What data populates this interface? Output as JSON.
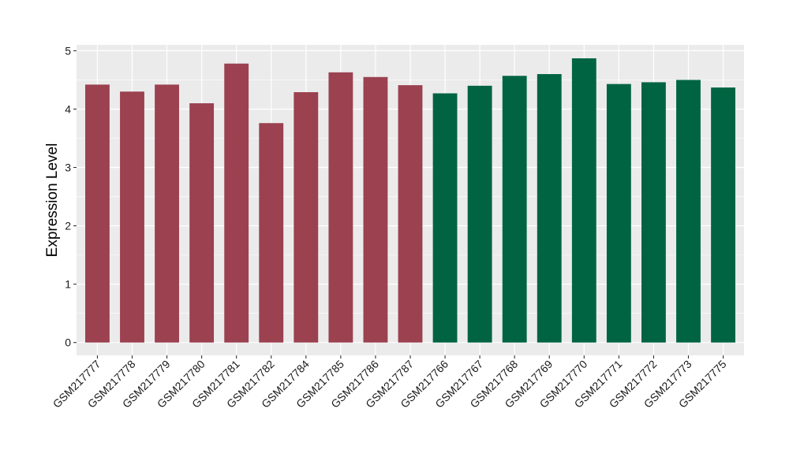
{
  "chart_data": {
    "type": "bar",
    "ylabel": "Expression Level",
    "xlabel": "",
    "title": "",
    "ylim": [
      -0.22,
      5.1
    ],
    "yticks": [
      0,
      1,
      2,
      3,
      4,
      5
    ],
    "grid": true,
    "legend": "none",
    "categories": [
      "GSM217777",
      "GSM217778",
      "GSM217779",
      "GSM217780",
      "GSM217781",
      "GSM217782",
      "GSM217784",
      "GSM217785",
      "GSM217786",
      "GSM217787",
      "GSM217766",
      "GSM217767",
      "GSM217768",
      "GSM217769",
      "GSM217770",
      "GSM217771",
      "GSM217772",
      "GSM217773",
      "GSM217775"
    ],
    "values": [
      4.42,
      4.3,
      4.42,
      4.1,
      4.78,
      3.76,
      4.29,
      4.63,
      4.55,
      4.41,
      4.27,
      4.4,
      4.57,
      4.6,
      4.87,
      4.43,
      4.46,
      4.5,
      4.37
    ],
    "groups": [
      0,
      0,
      0,
      0,
      0,
      0,
      0,
      0,
      0,
      0,
      1,
      1,
      1,
      1,
      1,
      1,
      1,
      1,
      1
    ],
    "group_colors": [
      "#9b4150",
      "#006443"
    ],
    "panel_background": "#ebebeb",
    "gridline_color": "#ffffff"
  }
}
